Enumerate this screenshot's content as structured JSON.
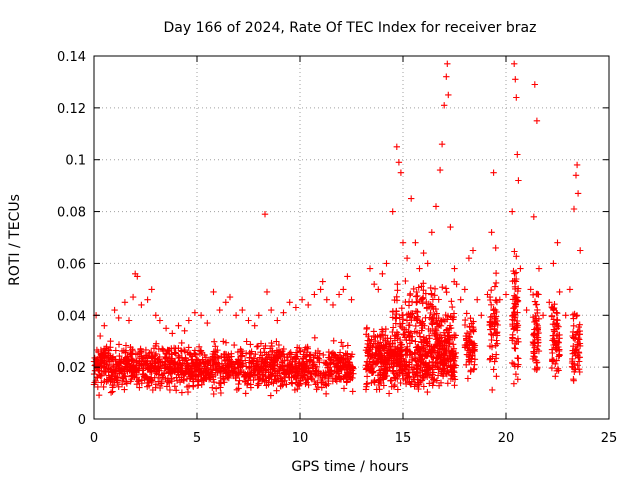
{
  "chart_data": {
    "type": "scatter",
    "title": "Day 166 of 2024, Rate Of TEC Index for receiver braz",
    "xlabel": "GPS time / hours",
    "ylabel": "ROTI / TECUs",
    "xlim": [
      0,
      25
    ],
    "ylim": [
      0,
      0.14
    ],
    "x_ticks": [
      0,
      5,
      10,
      15,
      20,
      25
    ],
    "y_ticks": [
      0,
      0.02,
      0.04,
      0.06,
      0.08,
      0.1,
      0.12,
      0.14
    ],
    "x_tick_labels": [
      "0",
      "5",
      "10",
      "15",
      "20",
      "25"
    ],
    "y_tick_labels": [
      "0",
      "0.02",
      "0.04",
      "0.06",
      "0.08",
      "0.1",
      "0.12",
      "0.14"
    ],
    "grid": true,
    "marker": "plus",
    "color": "#ff0000",
    "series": [
      {
        "points": [
          [
            0.1,
            0.04
          ],
          [
            0.3,
            0.032
          ],
          [
            0.5,
            0.036
          ],
          [
            0.8,
            0.03
          ],
          [
            1.0,
            0.042
          ],
          [
            1.2,
            0.039
          ],
          [
            1.5,
            0.045
          ],
          [
            1.7,
            0.038
          ],
          [
            1.9,
            0.047
          ],
          [
            2.0,
            0.056
          ],
          [
            2.1,
            0.055
          ],
          [
            2.3,
            0.044
          ],
          [
            2.6,
            0.046
          ],
          [
            2.8,
            0.05
          ],
          [
            3.0,
            0.04
          ],
          [
            3.2,
            0.038
          ],
          [
            3.5,
            0.035
          ],
          [
            3.8,
            0.033
          ],
          [
            4.1,
            0.036
          ],
          [
            4.4,
            0.034
          ],
          [
            4.6,
            0.038
          ],
          [
            4.9,
            0.041
          ],
          [
            5.2,
            0.04
          ],
          [
            5.5,
            0.037
          ],
          [
            5.8,
            0.049
          ],
          [
            6.1,
            0.042
          ],
          [
            6.4,
            0.045
          ],
          [
            6.6,
            0.047
          ],
          [
            6.9,
            0.04
          ],
          [
            7.2,
            0.042
          ],
          [
            7.5,
            0.038
          ],
          [
            7.8,
            0.036
          ],
          [
            8.0,
            0.04
          ],
          [
            8.3,
            0.079
          ],
          [
            8.4,
            0.049
          ],
          [
            8.6,
            0.042
          ],
          [
            8.9,
            0.038
          ],
          [
            9.2,
            0.041
          ],
          [
            9.5,
            0.045
          ],
          [
            9.8,
            0.043
          ],
          [
            10.1,
            0.046
          ],
          [
            10.4,
            0.044
          ],
          [
            10.7,
            0.048
          ],
          [
            11.0,
            0.05
          ],
          [
            11.1,
            0.053
          ],
          [
            11.3,
            0.046
          ],
          [
            11.6,
            0.044
          ],
          [
            11.9,
            0.048
          ],
          [
            12.1,
            0.05
          ],
          [
            12.3,
            0.055
          ],
          [
            12.5,
            0.046
          ],
          [
            13.4,
            0.058
          ],
          [
            13.6,
            0.052
          ],
          [
            13.8,
            0.05
          ],
          [
            14.0,
            0.056
          ],
          [
            14.2,
            0.06
          ],
          [
            14.5,
            0.08
          ],
          [
            14.7,
            0.105
          ],
          [
            14.8,
            0.099
          ],
          [
            14.9,
            0.095
          ],
          [
            15.0,
            0.068
          ],
          [
            15.2,
            0.062
          ],
          [
            15.4,
            0.085
          ],
          [
            15.6,
            0.068
          ],
          [
            15.8,
            0.058
          ],
          [
            16.0,
            0.064
          ],
          [
            16.2,
            0.06
          ],
          [
            16.4,
            0.072
          ],
          [
            16.6,
            0.082
          ],
          [
            16.8,
            0.096
          ],
          [
            16.9,
            0.106
          ],
          [
            17.0,
            0.121
          ],
          [
            17.1,
            0.132
          ],
          [
            17.15,
            0.137
          ],
          [
            17.2,
            0.125
          ],
          [
            17.3,
            0.074
          ],
          [
            17.5,
            0.058
          ],
          [
            17.6,
            0.052
          ],
          [
            17.8,
            0.046
          ],
          [
            18.0,
            0.05
          ],
          [
            18.2,
            0.062
          ],
          [
            18.4,
            0.065
          ],
          [
            18.6,
            0.046
          ],
          [
            18.8,
            0.04
          ],
          [
            19.1,
            0.048
          ],
          [
            19.3,
            0.072
          ],
          [
            19.4,
            0.095
          ],
          [
            19.5,
            0.066
          ],
          [
            19.7,
            0.046
          ],
          [
            20.0,
            0.048
          ],
          [
            20.3,
            0.08
          ],
          [
            20.4,
            0.137
          ],
          [
            20.45,
            0.131
          ],
          [
            20.5,
            0.124
          ],
          [
            20.55,
            0.102
          ],
          [
            20.6,
            0.092
          ],
          [
            20.7,
            0.058
          ],
          [
            21.0,
            0.042
          ],
          [
            21.2,
            0.05
          ],
          [
            21.35,
            0.078
          ],
          [
            21.4,
            0.129
          ],
          [
            21.5,
            0.115
          ],
          [
            21.6,
            0.058
          ],
          [
            21.8,
            0.04
          ],
          [
            22.1,
            0.045
          ],
          [
            22.3,
            0.06
          ],
          [
            22.5,
            0.068
          ],
          [
            22.6,
            0.049
          ],
          [
            22.9,
            0.04
          ],
          [
            23.1,
            0.05
          ],
          [
            23.3,
            0.081
          ],
          [
            23.4,
            0.094
          ],
          [
            23.45,
            0.098
          ],
          [
            23.5,
            0.087
          ],
          [
            23.6,
            0.065
          ]
        ],
        "density_bands": [
          {
            "x_range": [
              0,
              12.6
            ],
            "y_range": [
              0.008,
              0.032
            ],
            "count": 1400
          },
          {
            "x_range": [
              13.2,
              17.6
            ],
            "y_range": [
              0.006,
              0.04
            ],
            "count": 650
          },
          {
            "x_range": [
              14.5,
              17.5
            ],
            "y_range": [
              0.02,
              0.058
            ],
            "count": 180
          },
          {
            "x_range": [
              18.0,
              18.5
            ],
            "y_range": [
              0.01,
              0.045
            ],
            "count": 70
          },
          {
            "x_range": [
              19.2,
              19.6
            ],
            "y_range": [
              0.01,
              0.06
            ],
            "count": 60
          },
          {
            "x_range": [
              20.3,
              20.6
            ],
            "y_range": [
              0.008,
              0.07
            ],
            "count": 70
          },
          {
            "x_range": [
              21.3,
              21.6
            ],
            "y_range": [
              0.01,
              0.055
            ],
            "count": 60
          },
          {
            "x_range": [
              22.2,
              22.6
            ],
            "y_range": [
              0.01,
              0.055
            ],
            "count": 60
          },
          {
            "x_range": [
              23.2,
              23.6
            ],
            "y_range": [
              0.008,
              0.045
            ],
            "count": 60
          }
        ]
      }
    ]
  }
}
